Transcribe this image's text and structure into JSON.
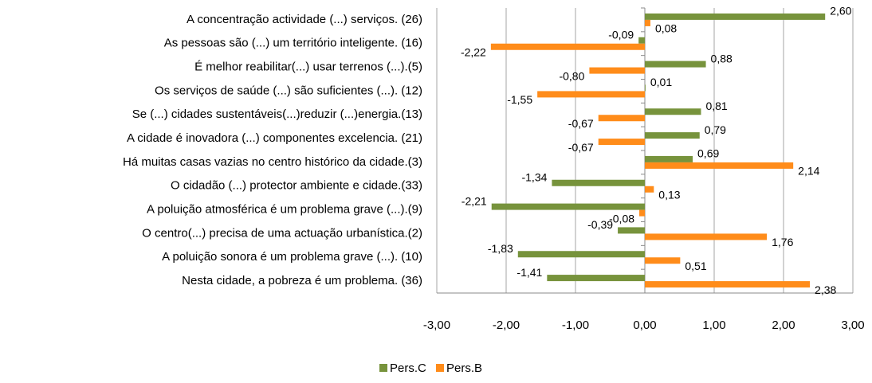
{
  "chart_data": {
    "type": "hbar",
    "categories": [
      "A concentração actividade (...) serviços. (26)",
      "As pessoas são (...) um território inteligente. (16)",
      "É melhor reabilitar(...) usar terrenos (...).(5)",
      "Os serviços de saúde (...) são suficientes (...). (12)",
      "Se (...) cidades sustentáveis(...)reduzir (...)energia.(13)",
      "A cidade é inovadora (...) componentes excelencia. (21)",
      "Há muitas casas vazias no centro histórico da cidade.(3)",
      "O cidadão (...) protector ambiente e cidade.(33)",
      "A poluição atmosférica é um problema grave (...).(9)",
      "O centro(...) precisa de uma actuação urbanística.(2)",
      "A poluição sonora é um problema grave (...). (10)",
      "Nesta cidade, a pobreza é um problema. (36)"
    ],
    "series": [
      {
        "name": "Pers.C",
        "color": "#77933c",
        "values": [
          2.6,
          -0.09,
          0.88,
          0.01,
          0.81,
          0.79,
          0.69,
          -1.34,
          -2.21,
          -0.39,
          -1.83,
          -1.41
        ],
        "value_labels": [
          "2,60",
          "-0,09",
          "0,88",
          "0,01",
          "0,81",
          "0,79",
          "0,69",
          "-1,34",
          "-2,21",
          "-0,39",
          "-1,83",
          "-1,41"
        ]
      },
      {
        "name": "Pers.B",
        "color": "#ff8c1a",
        "values": [
          0.08,
          -2.22,
          -0.8,
          -1.55,
          -0.67,
          -0.67,
          2.14,
          0.13,
          -0.08,
          1.76,
          0.51,
          2.38
        ],
        "value_labels": [
          "0,08",
          "-2,22",
          "-0,80",
          "-1,55",
          "-0,67",
          "-0,67",
          "2,14",
          "0,13",
          "-0,08",
          "1,76",
          "0,51",
          "2,38"
        ]
      }
    ],
    "xlim": [
      -3,
      3
    ],
    "xticks": [
      {
        "value": -3,
        "label": "-3,00"
      },
      {
        "value": -2,
        "label": "-2,00"
      },
      {
        "value": -1,
        "label": "-1,00"
      },
      {
        "value": 0,
        "label": "0,00"
      },
      {
        "value": 1,
        "label": "1,00"
      },
      {
        "value": 2,
        "label": "2,00"
      },
      {
        "value": 3,
        "label": "3,00"
      }
    ],
    "grid": true,
    "legend": "bottom"
  }
}
